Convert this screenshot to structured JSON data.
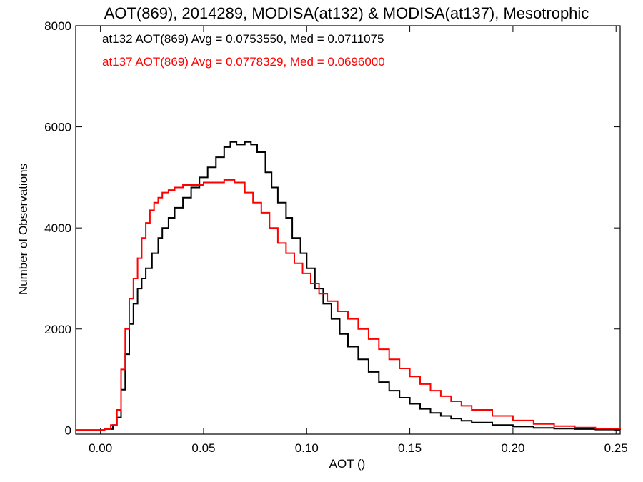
{
  "chart_data": {
    "type": "line",
    "title": "AOT(869), 2014289, MODISA(at132) & MODISA(at137), Mesotrophic",
    "xlabel": "AOT ()",
    "ylabel": "Number of Observations",
    "xlim": [
      -0.012,
      0.252
    ],
    "ylim": [
      -80,
      8000
    ],
    "xticks": [
      0.0,
      0.05,
      0.1,
      0.15,
      0.2,
      0.25
    ],
    "xtick_labels": [
      "0.00",
      "0.05",
      "0.10",
      "0.15",
      "0.20",
      "0.25"
    ],
    "yticks": [
      0,
      2000,
      4000,
      6000,
      8000
    ],
    "ytick_labels": [
      "0",
      "2000",
      "4000",
      "6000",
      "8000"
    ],
    "grid": false,
    "legend_placement": "top-left",
    "series": [
      {
        "label": "at132 AOT(869) Avg = 0.0753550, Med = 0.0711075",
        "color": "#000000",
        "x": [
          -0.012,
          0.002,
          0.006,
          0.008,
          0.01,
          0.012,
          0.014,
          0.016,
          0.018,
          0.02,
          0.022,
          0.025,
          0.028,
          0.03,
          0.033,
          0.036,
          0.04,
          0.044,
          0.048,
          0.052,
          0.056,
          0.06,
          0.063,
          0.066,
          0.07,
          0.073,
          0.076,
          0.08,
          0.083,
          0.086,
          0.09,
          0.093,
          0.097,
          0.1,
          0.104,
          0.108,
          0.112,
          0.116,
          0.12,
          0.125,
          0.13,
          0.135,
          0.14,
          0.145,
          0.15,
          0.155,
          0.16,
          0.165,
          0.17,
          0.175,
          0.18,
          0.19,
          0.2,
          0.21,
          0.22,
          0.23,
          0.24,
          0.252
        ],
        "y": [
          0,
          20,
          100,
          250,
          800,
          1500,
          2100,
          2500,
          2800,
          3000,
          3200,
          3500,
          3800,
          4000,
          4200,
          4400,
          4600,
          4800,
          5000,
          5200,
          5400,
          5600,
          5700,
          5650,
          5700,
          5650,
          5500,
          5100,
          4800,
          4500,
          4200,
          3800,
          3500,
          3200,
          2800,
          2500,
          2200,
          1900,
          1650,
          1400,
          1150,
          950,
          780,
          640,
          520,
          420,
          340,
          280,
          230,
          185,
          150,
          100,
          70,
          45,
          30,
          20,
          10,
          5
        ]
      },
      {
        "label": "at137 AOT(869) Avg = 0.0778329, Med = 0.0696000",
        "color": "#ff0000",
        "x": [
          -0.012,
          0.002,
          0.005,
          0.008,
          0.01,
          0.012,
          0.014,
          0.016,
          0.018,
          0.02,
          0.022,
          0.024,
          0.026,
          0.028,
          0.03,
          0.033,
          0.036,
          0.04,
          0.045,
          0.05,
          0.055,
          0.06,
          0.065,
          0.07,
          0.074,
          0.078,
          0.082,
          0.086,
          0.09,
          0.094,
          0.098,
          0.102,
          0.106,
          0.11,
          0.115,
          0.12,
          0.125,
          0.13,
          0.135,
          0.14,
          0.145,
          0.15,
          0.155,
          0.16,
          0.165,
          0.17,
          0.175,
          0.18,
          0.19,
          0.2,
          0.21,
          0.22,
          0.23,
          0.24,
          0.252
        ],
        "y": [
          0,
          20,
          100,
          400,
          1200,
          2000,
          2600,
          3000,
          3400,
          3800,
          4100,
          4350,
          4500,
          4600,
          4700,
          4750,
          4800,
          4850,
          4850,
          4900,
          4900,
          4950,
          4900,
          4700,
          4500,
          4300,
          4000,
          3700,
          3500,
          3300,
          3100,
          2900,
          2700,
          2550,
          2350,
          2200,
          2000,
          1800,
          1600,
          1400,
          1220,
          1060,
          910,
          780,
          670,
          570,
          480,
          400,
          280,
          190,
          120,
          80,
          50,
          30,
          15
        ]
      }
    ]
  }
}
